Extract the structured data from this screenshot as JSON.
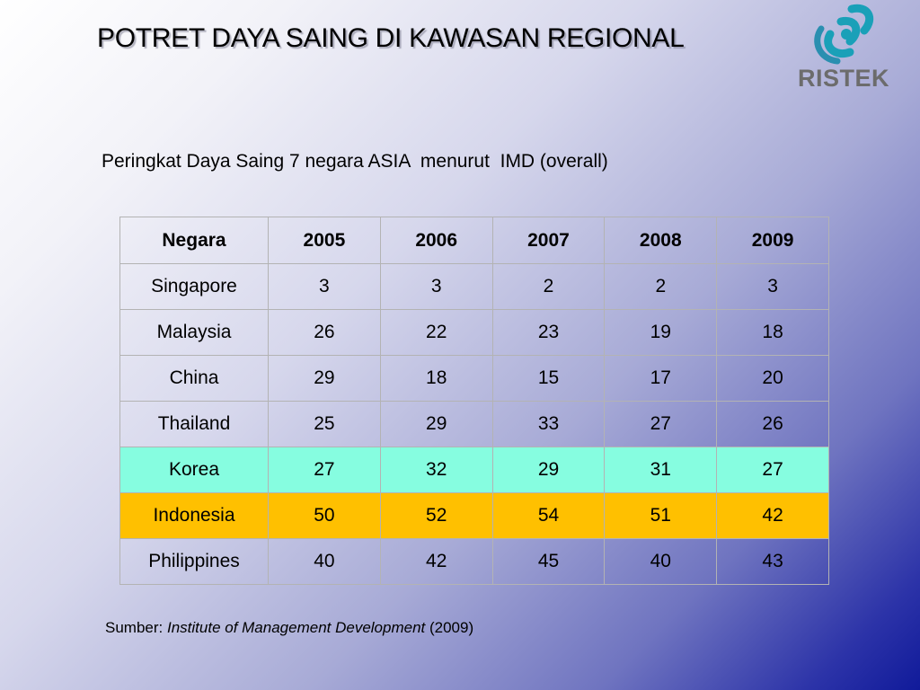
{
  "slide": {
    "title": "POTRET DAYA SAING DI KAWASAN REGIONAL",
    "logo_text": "RISTEK",
    "subtitle": "Peringkat Daya Saing 7 negara ASIA  menurut  IMD (overall)"
  },
  "table": {
    "headers": [
      "Negara",
      "2005",
      "2006",
      "2007",
      "2008",
      "2009"
    ],
    "rows": [
      {
        "country": "Singapore",
        "values": [
          "3",
          "3",
          "2",
          "2",
          "3"
        ]
      },
      {
        "country": "Malaysia",
        "values": [
          "26",
          "22",
          "23",
          "19",
          "18"
        ]
      },
      {
        "country": "China",
        "values": [
          "29",
          "18",
          "15",
          "17",
          "20"
        ]
      },
      {
        "country": "Thailand",
        "values": [
          "25",
          "29",
          "33",
          "27",
          "26"
        ]
      },
      {
        "country": "Korea",
        "values": [
          "27",
          "32",
          "29",
          "31",
          "27"
        ]
      },
      {
        "country": "Indonesia",
        "values": [
          "50",
          "52",
          "54",
          "51",
          "42"
        ]
      },
      {
        "country": "Philippines",
        "values": [
          "40",
          "42",
          "45",
          "40",
          "43"
        ]
      }
    ],
    "highlight_colors": {
      "Korea": "#86fde0",
      "Indonesia": "#ffc000"
    }
  },
  "source": {
    "prefix": "Sumber: ",
    "institution": "Institute of Management Development",
    "suffix": " (2009)"
  },
  "icons": {
    "logo": "ristek-logo-icon"
  },
  "colors": {
    "logo_teal": "#1aa0b8",
    "logo_text": "#6c6c6c"
  }
}
